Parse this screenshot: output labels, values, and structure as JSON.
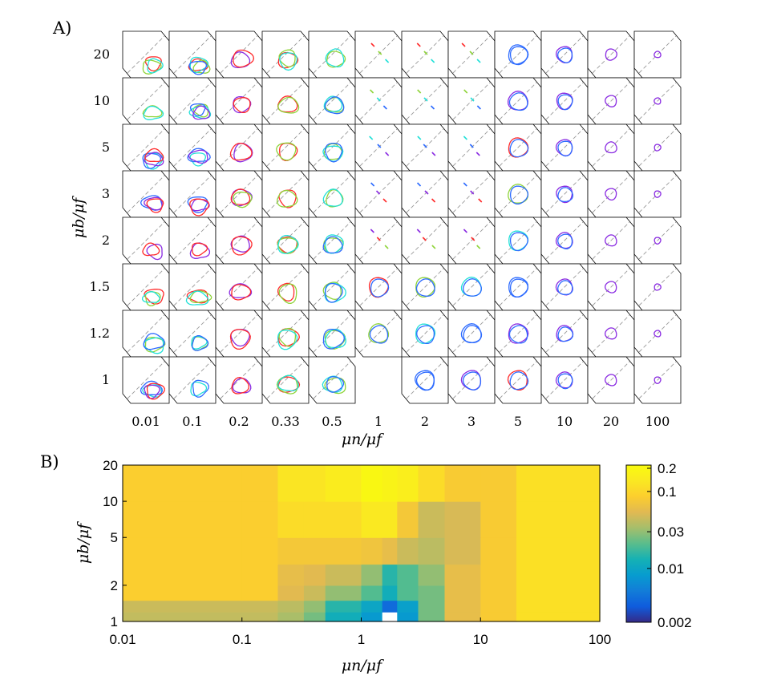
{
  "chart_data": [
    {
      "id": "A",
      "type": "other",
      "panel_label": "A)",
      "description_kind": "grid of small contour panels",
      "xlabel": "μn/μf",
      "ylabel": "μb/μf",
      "x_ticks": [
        "0.01",
        "0.1",
        "0.2",
        "0.33",
        "0.5",
        "1",
        "2",
        "3",
        "5",
        "10",
        "20",
        "100"
      ],
      "y_ticks": [
        "20",
        "10",
        "5",
        "3",
        "2",
        "1.5",
        "1.2",
        "1"
      ],
      "contour_colors": [
        "#ff2a2a",
        "#8fd43a",
        "#22e0d8",
        "#2d6bff",
        "#8a2be2"
      ],
      "empty_cells": [
        [
          7,
          5
        ]
      ]
    },
    {
      "id": "B",
      "type": "heatmap",
      "panel_label": "B)",
      "xlabel": "μn/μf",
      "ylabel": "μb/μf",
      "xscale": "log",
      "yscale": "log",
      "xlim": [
        0.01,
        100
      ],
      "ylim": [
        1,
        20
      ],
      "x_ticks": [
        0.01,
        0.1,
        1,
        10,
        100
      ],
      "x_tick_labels": [
        "0.01",
        "0.1",
        "1",
        "10",
        "100"
      ],
      "y_ticks": [
        1,
        2,
        5,
        10,
        20
      ],
      "y_tick_labels": [
        "1",
        "2",
        "5",
        "10",
        "20"
      ],
      "x_edges": [
        0.01,
        0.1,
        0.2,
        0.33,
        0.5,
        1,
        1.5,
        2,
        3,
        5,
        10,
        20,
        100
      ],
      "y_edges": [
        1,
        1.2,
        1.5,
        2,
        3,
        5,
        10,
        20
      ],
      "values": [
        [
          0.042,
          0.042,
          0.035,
          0.025,
          0.012,
          0.008,
          null,
          0.008,
          0.025,
          0.06,
          0.08,
          0.12
        ],
        [
          0.045,
          0.045,
          0.04,
          0.03,
          0.015,
          0.01,
          0.004,
          0.009,
          0.025,
          0.06,
          0.08,
          0.12
        ],
        [
          0.085,
          0.085,
          0.055,
          0.045,
          0.03,
          0.02,
          0.012,
          0.02,
          0.025,
          0.06,
          0.08,
          0.12
        ],
        [
          0.085,
          0.085,
          0.06,
          0.055,
          0.045,
          0.03,
          0.015,
          0.02,
          0.03,
          0.06,
          0.08,
          0.12
        ],
        [
          0.085,
          0.085,
          0.075,
          0.075,
          0.075,
          0.07,
          0.06,
          0.045,
          0.04,
          0.05,
          0.08,
          0.12
        ],
        [
          0.085,
          0.085,
          0.11,
          0.11,
          0.11,
          0.14,
          0.14,
          0.075,
          0.045,
          0.05,
          0.08,
          0.12
        ],
        [
          0.085,
          0.085,
          0.13,
          0.13,
          0.15,
          0.2,
          0.18,
          0.16,
          0.11,
          0.08,
          0.08,
          0.12
        ]
      ],
      "colorbar": {
        "scale": "log",
        "min": 0.002,
        "max": 0.22,
        "ticks": [
          0.002,
          0.01,
          0.03,
          0.1,
          0.2
        ],
        "tick_labels": [
          "0.002",
          "0.01",
          "0.03",
          "0.1",
          "0.2"
        ]
      }
    }
  ]
}
